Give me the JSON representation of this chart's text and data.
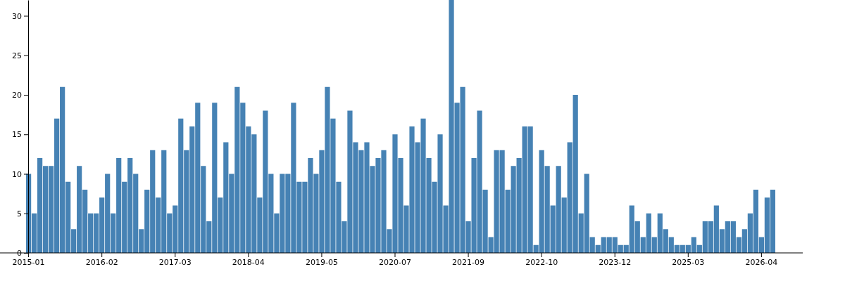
{
  "chart_data": {
    "type": "bar",
    "color": "#4682b4",
    "ylim": [
      0,
      32
    ],
    "yticks": [
      0,
      5,
      10,
      15,
      20,
      25,
      30
    ],
    "categories": [
      "2015-01",
      null,
      null,
      null,
      null,
      null,
      null,
      null,
      null,
      null,
      null,
      null,
      null,
      "2016-02",
      null,
      null,
      null,
      null,
      null,
      null,
      null,
      null,
      null,
      null,
      null,
      null,
      "2017-03",
      null,
      null,
      null,
      null,
      null,
      null,
      null,
      null,
      null,
      null,
      null,
      null,
      "2018-04",
      null,
      null,
      null,
      null,
      null,
      null,
      null,
      null,
      null,
      null,
      null,
      null,
      "2019-05",
      null,
      null,
      null,
      null,
      null,
      null,
      null,
      null,
      null,
      null,
      null,
      null,
      "2020-07",
      null,
      null,
      null,
      null,
      null,
      null,
      null,
      null,
      null,
      null,
      null,
      null,
      "2021-09",
      null,
      null,
      null,
      null,
      null,
      null,
      null,
      null,
      null,
      null,
      null,
      null,
      "2022-10",
      null,
      null,
      null,
      null,
      null,
      null,
      null,
      null,
      null,
      null,
      null,
      null,
      "2023-12",
      null,
      null,
      null,
      null,
      null,
      null,
      null,
      null,
      null,
      null,
      null,
      null,
      "2025-03",
      null,
      null,
      null,
      null,
      null,
      null,
      null,
      null,
      null,
      null,
      null,
      null,
      "2026-04",
      null,
      null
    ],
    "values": [
      10,
      5,
      12,
      11,
      11,
      17,
      21,
      9,
      3,
      11,
      8,
      5,
      5,
      7,
      10,
      5,
      12,
      9,
      12,
      10,
      3,
      8,
      13,
      7,
      13,
      5,
      6,
      17,
      13,
      16,
      19,
      11,
      4,
      19,
      7,
      14,
      10,
      21,
      19,
      16,
      15,
      7,
      18,
      10,
      5,
      10,
      10,
      19,
      9,
      9,
      12,
      10,
      13,
      21,
      17,
      9,
      4,
      18,
      14,
      13,
      14,
      11,
      12,
      13,
      3,
      15,
      12,
      6,
      16,
      14,
      17,
      12,
      9,
      15,
      6,
      32,
      19,
      21,
      4,
      12,
      18,
      8,
      2,
      13,
      13,
      8,
      11,
      12,
      16,
      16,
      1,
      13,
      11,
      6,
      11,
      7,
      14,
      20,
      5,
      10,
      2,
      1,
      2,
      2,
      2,
      1,
      1,
      6,
      4,
      2,
      5,
      2,
      5,
      3,
      2,
      1,
      1,
      1,
      2,
      1,
      4,
      4,
      6,
      3,
      4,
      4,
      2,
      3,
      5,
      8,
      2,
      7,
      8
    ],
    "grid": false
  }
}
